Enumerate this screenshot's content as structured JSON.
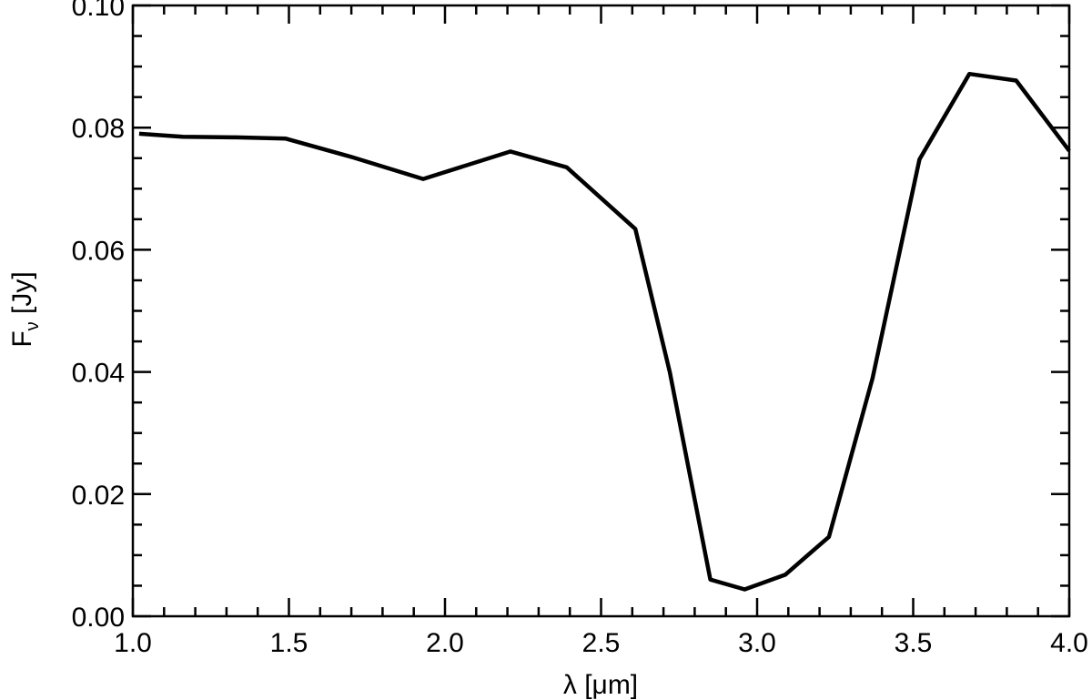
{
  "chart_data": {
    "type": "line",
    "title": "",
    "xlabel": "λ [μm]",
    "ylabel_main": "F",
    "ylabel_sub": "ν",
    "ylabel_unit": " [Jy]",
    "xlim": [
      1.0,
      4.0
    ],
    "ylim": [
      0.0,
      0.1
    ],
    "x_ticks": [
      1.0,
      1.5,
      2.0,
      2.5,
      3.0,
      3.5,
      4.0
    ],
    "x_tick_labels": [
      "1.0",
      "1.5",
      "2.0",
      "2.5",
      "3.0",
      "3.5",
      "4.0"
    ],
    "y_ticks": [
      0.0,
      0.02,
      0.04,
      0.06,
      0.08,
      0.1
    ],
    "y_tick_labels": [
      "0.00",
      "0.02",
      "0.04",
      "0.06",
      "0.08",
      "0.10"
    ],
    "grid": false,
    "series": [
      {
        "color": "#000000",
        "x": [
          1.02,
          1.16,
          1.33,
          1.49,
          1.7,
          1.93,
          2.21,
          2.39,
          2.61,
          2.72,
          2.85,
          2.96,
          3.09,
          3.23,
          3.37,
          3.52,
          3.68,
          3.83,
          4.0
        ],
        "y": [
          0.079,
          0.0785,
          0.0784,
          0.0782,
          0.0752,
          0.0716,
          0.0761,
          0.0735,
          0.0634,
          0.04,
          0.006,
          0.0044,
          0.0068,
          0.013,
          0.039,
          0.0748,
          0.0888,
          0.0877,
          0.0762
        ]
      }
    ]
  }
}
